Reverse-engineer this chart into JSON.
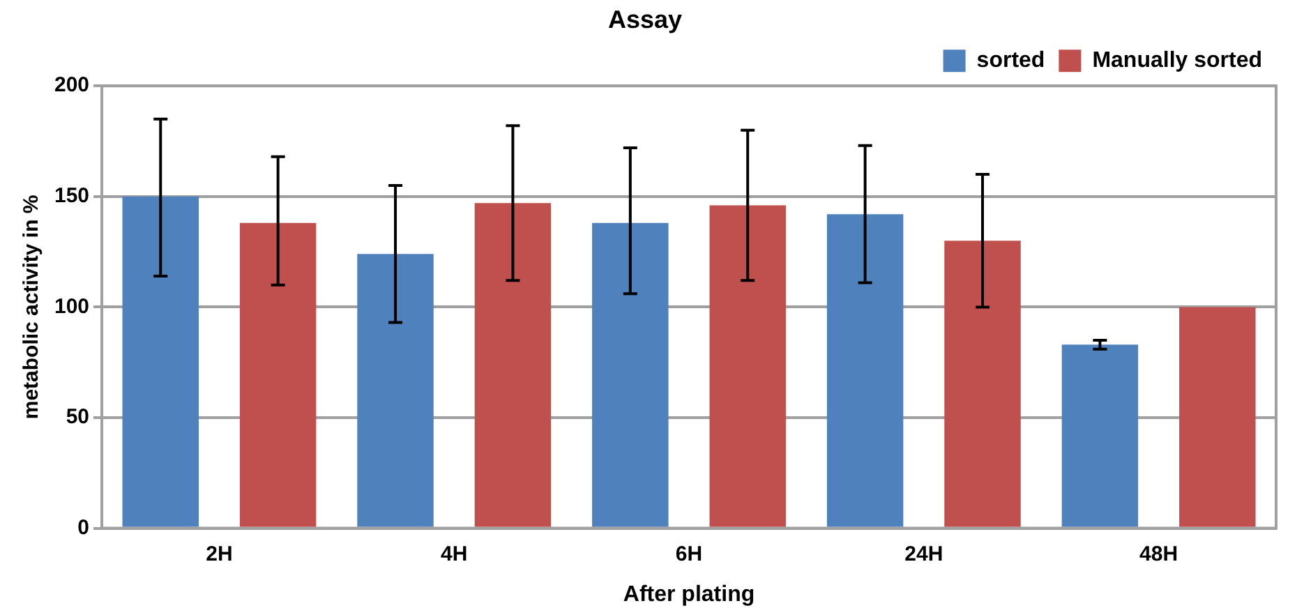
{
  "chart_data": {
    "type": "bar",
    "title": "Assay",
    "xlabel": "After plating",
    "ylabel": "metabolic activity in %",
    "categories": [
      "2H",
      "4H",
      "6H",
      "24H",
      "48H"
    ],
    "series": [
      {
        "name": "sorted",
        "color": "#4f81bd",
        "values": [
          150,
          124,
          138,
          142,
          83
        ],
        "errors": [
          [
            114,
            185
          ],
          [
            93,
            155
          ],
          [
            106,
            172
          ],
          [
            111,
            173
          ],
          [
            81,
            85
          ]
        ]
      },
      {
        "name": "Manually sorted",
        "color": "#c0504d",
        "values": [
          138,
          147,
          146,
          130,
          100
        ],
        "errors": [
          [
            110,
            168
          ],
          [
            112,
            182
          ],
          [
            112,
            180
          ],
          [
            100,
            160
          ],
          null
        ]
      }
    ],
    "ylim": [
      0,
      200
    ],
    "yticks": [
      0,
      50,
      100,
      150,
      200
    ],
    "grid": "y",
    "legend": "top right"
  }
}
